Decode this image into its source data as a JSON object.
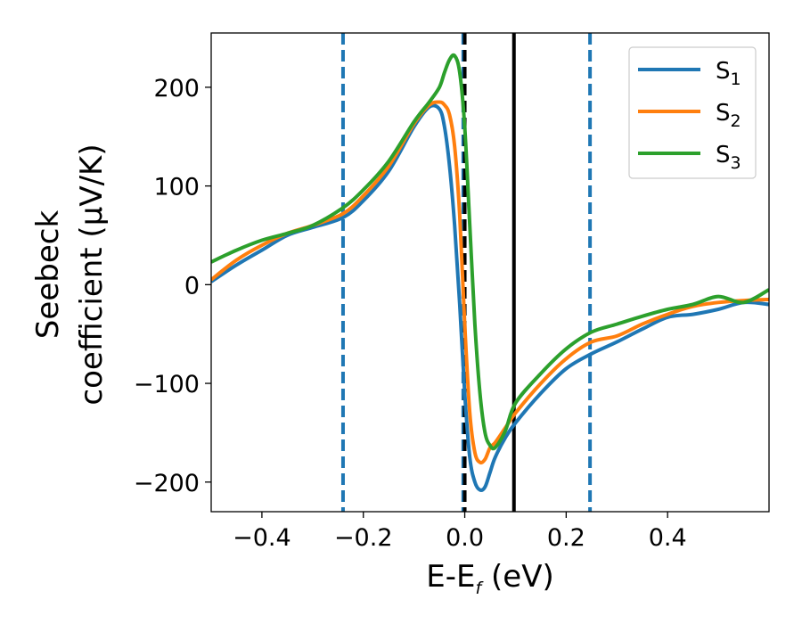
{
  "chart_data": {
    "type": "line",
    "xlabel": {
      "main": "E-E",
      "sub": "f",
      "rest": " (eV)"
    },
    "ylabel": {
      "line1": "Seebeck",
      "line2": "coefficient  (μV/K)"
    },
    "xlim": [
      -0.5,
      0.6
    ],
    "ylim": [
      -230,
      255
    ],
    "xticks": [
      -0.4,
      -0.2,
      0.0,
      0.2,
      0.4
    ],
    "xtick_labels": [
      "−0.4",
      "−0.2",
      "0.0",
      "0.2",
      "0.4"
    ],
    "yticks": [
      -200,
      -100,
      0,
      100,
      200
    ],
    "ytick_labels": [
      "−200",
      "−100",
      "0",
      "100",
      "200"
    ],
    "grid": false,
    "legend_position": "top-right",
    "colors": {
      "S1": "#1f77b4",
      "S2": "#ff7f0e",
      "S3": "#2ca02c",
      "black": "#000000"
    },
    "vertical_lines": [
      {
        "x": -0.24,
        "style": "dashed",
        "color": "#1f77b4"
      },
      {
        "x": -0.003,
        "style": "dashed",
        "color": "#1f77b4"
      },
      {
        "x": 0.0,
        "style": "dashed",
        "color": "#000000"
      },
      {
        "x": 0.097,
        "style": "solid",
        "color": "#000000"
      },
      {
        "x": 0.247,
        "style": "dashed",
        "color": "#1f77b4"
      }
    ],
    "series": [
      {
        "name": "S",
        "sub": "1",
        "color": "#1f77b4",
        "x": [
          -0.5,
          -0.45,
          -0.4,
          -0.35,
          -0.3,
          -0.24,
          -0.2,
          -0.15,
          -0.1,
          -0.07,
          -0.05,
          -0.04,
          -0.03,
          -0.02,
          -0.01,
          0.0,
          0.01,
          0.02,
          0.03,
          0.04,
          0.05,
          0.06,
          0.08,
          0.1,
          0.15,
          0.2,
          0.25,
          0.3,
          0.35,
          0.4,
          0.45,
          0.5,
          0.55,
          0.6
        ],
        "y": [
          3,
          20,
          35,
          50,
          58,
          68,
          85,
          115,
          160,
          180,
          178,
          160,
          120,
          60,
          -20,
          -110,
          -175,
          -200,
          -208,
          -205,
          -190,
          -175,
          -155,
          -140,
          -110,
          -85,
          -70,
          -58,
          -45,
          -33,
          -30,
          -25,
          -18,
          -20
        ]
      },
      {
        "name": "S",
        "sub": "2",
        "color": "#ff7f0e",
        "x": [
          -0.5,
          -0.45,
          -0.4,
          -0.35,
          -0.3,
          -0.24,
          -0.2,
          -0.15,
          -0.1,
          -0.07,
          -0.05,
          -0.04,
          -0.03,
          -0.02,
          -0.01,
          0.0,
          0.01,
          0.02,
          0.03,
          0.04,
          0.05,
          0.06,
          0.08,
          0.1,
          0.15,
          0.2,
          0.25,
          0.3,
          0.35,
          0.4,
          0.45,
          0.5,
          0.55,
          0.6
        ],
        "y": [
          5,
          25,
          40,
          52,
          60,
          72,
          90,
          120,
          163,
          182,
          185,
          182,
          172,
          140,
          70,
          -40,
          -130,
          -170,
          -180,
          -177,
          -165,
          -160,
          -145,
          -130,
          -100,
          -75,
          -58,
          -52,
          -40,
          -30,
          -22,
          -18,
          -16,
          -15
        ]
      },
      {
        "name": "S",
        "sub": "3",
        "color": "#2ca02c",
        "x": [
          -0.5,
          -0.45,
          -0.4,
          -0.35,
          -0.3,
          -0.24,
          -0.2,
          -0.15,
          -0.1,
          -0.07,
          -0.05,
          -0.04,
          -0.03,
          -0.02,
          -0.01,
          0.0,
          0.01,
          0.02,
          0.03,
          0.04,
          0.05,
          0.06,
          0.08,
          0.1,
          0.15,
          0.2,
          0.25,
          0.3,
          0.35,
          0.4,
          0.45,
          0.5,
          0.55,
          0.6
        ],
        "y": [
          23,
          35,
          45,
          52,
          60,
          78,
          96,
          125,
          165,
          185,
          200,
          215,
          228,
          232,
          215,
          160,
          60,
          -40,
          -110,
          -150,
          -163,
          -165,
          -148,
          -120,
          -90,
          -65,
          -48,
          -40,
          -32,
          -25,
          -20,
          -12,
          -18,
          -5
        ]
      }
    ]
  }
}
